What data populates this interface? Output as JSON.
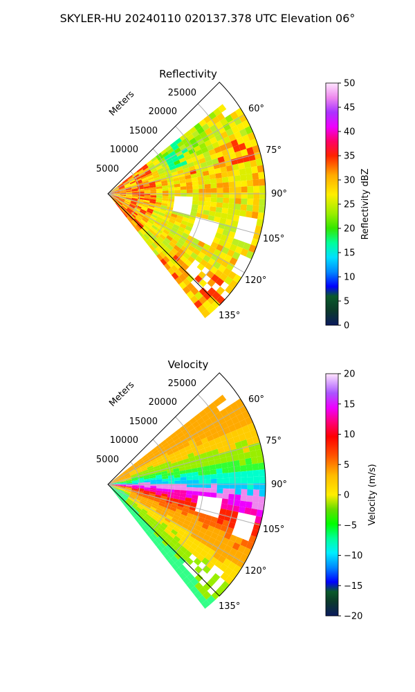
{
  "figure_title": "SKYLER-HU  20240110  020137.378 UTC Elevation 06°",
  "chart_data": [
    {
      "type": "heatmap",
      "title": "Reflectivity",
      "radial_label": "Meters",
      "radial_ticks": [
        "5000",
        "10000",
        "15000",
        "20000",
        "25000"
      ],
      "azimuth_ticks": [
        "60°",
        "75°",
        "90°",
        "105°",
        "120°",
        "135°"
      ],
      "colorbar": {
        "label": "Reflectivity dBZ",
        "range": [
          0,
          50
        ],
        "ticks": [
          "0",
          "5",
          "10",
          "15",
          "20",
          "25",
          "30",
          "35",
          "40",
          "45",
          "50"
        ]
      }
    },
    {
      "type": "heatmap",
      "title": "Velocity",
      "radial_label": "Meters",
      "radial_ticks": [
        "5000",
        "10000",
        "15000",
        "20000",
        "25000"
      ],
      "azimuth_ticks": [
        "60°",
        "75°",
        "90°",
        "105°",
        "120°",
        "135°"
      ],
      "colorbar": {
        "label": "Velocity (m/s)",
        "range": [
          -20,
          20
        ],
        "ticks": [
          "−20",
          "−15",
          "−10",
          "−5",
          "0",
          "5",
          "10",
          "15",
          "20"
        ]
      }
    }
  ]
}
